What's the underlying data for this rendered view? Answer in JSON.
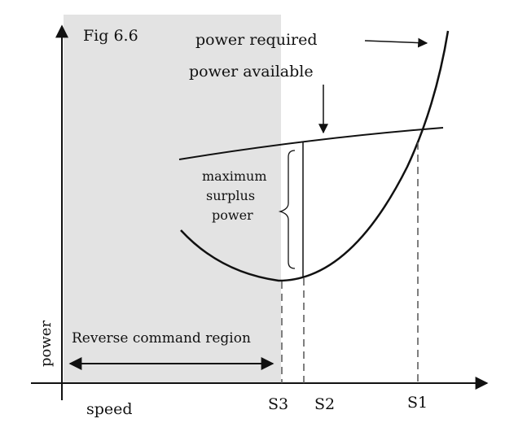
{
  "figure_label": "Fig 6.6",
  "labels": {
    "power_required": "power required",
    "power_available": "power available",
    "max_surplus_line1": "maximum",
    "max_surplus_line2": "surplus",
    "max_surplus_line3": "power",
    "reverse_command": "Reverse command region"
  },
  "axes": {
    "x_label": "speed",
    "y_label": "power"
  },
  "speed_markers": [
    "S3",
    "S2",
    "S1"
  ],
  "colors": {
    "shaded_region": "#e3e3e3",
    "curve": "#111111",
    "dashed": "#555555"
  }
}
